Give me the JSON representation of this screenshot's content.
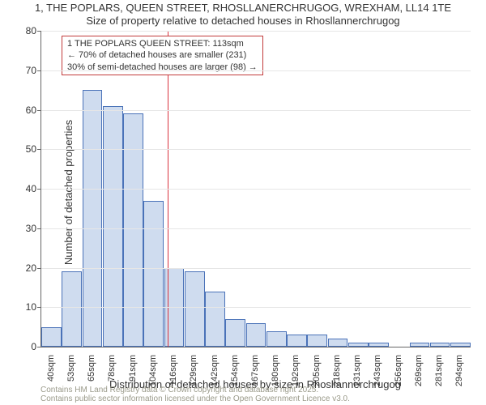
{
  "title": "1, THE POPLARS, QUEEN STREET, RHOSLLANERCHRUGOG, WREXHAM, LL14 1TE",
  "subtitle": "Size of property relative to detached houses in Rhosllannerchrugog",
  "x_axis_title": "Distribution of detached houses by size in Rhosllannerchrugog",
  "y_axis_title": "Number of detached properties",
  "footer_line1": "Contains HM Land Registry data © Crown copyright and database right 2025.",
  "footer_line2": "Contains public sector information licensed under the Open Government Licence v3.0.",
  "chart": {
    "type": "histogram",
    "ylim": [
      0,
      80
    ],
    "ytick_step": 10,
    "background_color": "#ffffff",
    "grid_color": "#e6e6e6",
    "axis_color": "#666666",
    "bar_fill": "#cfdcef",
    "bar_border": "#4a72b8",
    "marker_color": "#d9333f",
    "marker_x_index": 5.7,
    "x_labels": [
      "40sqm",
      "53sqm",
      "65sqm",
      "78sqm",
      "91sqm",
      "104sqm",
      "116sqm",
      "129sqm",
      "142sqm",
      "154sqm",
      "167sqm",
      "180sqm",
      "192sqm",
      "205sqm",
      "218sqm",
      "231sqm",
      "243sqm",
      "256sqm",
      "269sqm",
      "281sqm",
      "294sqm"
    ],
    "values": [
      5,
      19,
      65,
      61,
      59,
      37,
      20,
      19,
      14,
      7,
      6,
      4,
      3,
      3,
      2,
      1,
      1,
      0,
      1,
      1,
      1
    ],
    "title_fontsize": 13,
    "label_fontsize": 12,
    "tick_fontsize": 11
  },
  "annotation": {
    "line1": "1 THE POPLARS QUEEN STREET: 113sqm",
    "line2": "← 70% of detached houses are smaller (231)",
    "line3": "30% of semi-detached houses are larger (98) →",
    "border_color": "#c23b3b",
    "fontsize": 11
  }
}
